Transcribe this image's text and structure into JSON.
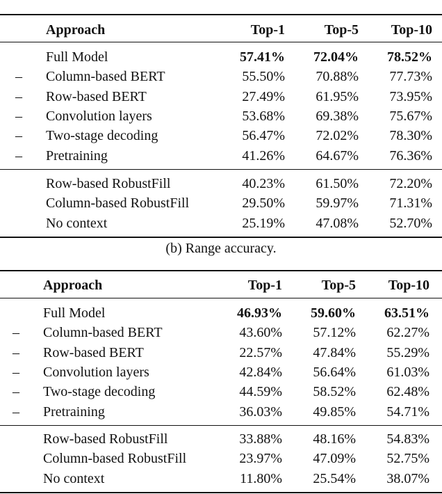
{
  "tables": [
    {
      "caption": "",
      "header": {
        "approach": "Approach",
        "cols": [
          "Top-1",
          "Top-5",
          "Top-10"
        ]
      },
      "groups": [
        [
          {
            "prefix": "",
            "approach": "Full Model",
            "values": [
              "57.41%",
              "72.04%",
              "78.52%"
            ],
            "bold": true
          },
          {
            "prefix": "–",
            "approach": "Column-based BERT",
            "values": [
              "55.50%",
              "70.88%",
              "77.73%"
            ]
          },
          {
            "prefix": "–",
            "approach": "Row-based BERT",
            "values": [
              "27.49%",
              "61.95%",
              "73.95%"
            ]
          },
          {
            "prefix": "–",
            "approach": "Convolution layers",
            "values": [
              "53.68%",
              "69.38%",
              "75.67%"
            ]
          },
          {
            "prefix": "–",
            "approach": "Two-stage decoding",
            "values": [
              "56.47%",
              "72.02%",
              "78.30%"
            ]
          },
          {
            "prefix": "–",
            "approach": "Pretraining",
            "values": [
              "41.26%",
              "64.67%",
              "76.36%"
            ]
          }
        ],
        [
          {
            "prefix": "",
            "approach": "Row-based RobustFill",
            "values": [
              "40.23%",
              "61.50%",
              "72.20%"
            ]
          },
          {
            "prefix": "",
            "approach": "Column-based RobustFill",
            "values": [
              "29.50%",
              "59.97%",
              "71.31%"
            ]
          },
          {
            "prefix": "",
            "approach": "No context",
            "values": [
              "25.19%",
              "47.08%",
              "52.70%"
            ]
          }
        ]
      ]
    },
    {
      "caption": "(b) Range accuracy.",
      "header": {
        "approach": "Approach",
        "cols": [
          "Top-1",
          "Top-5",
          "Top-10"
        ]
      },
      "groups": [
        [
          {
            "prefix": "",
            "approach": "Full Model",
            "values": [
              "46.93%",
              "59.60%",
              "63.51%"
            ],
            "bold": true
          },
          {
            "prefix": "–",
            "approach": "Column-based BERT",
            "values": [
              "43.60%",
              "57.12%",
              "62.27%"
            ]
          },
          {
            "prefix": "–",
            "approach": "Row-based BERT",
            "values": [
              "22.57%",
              "47.84%",
              "55.29%"
            ]
          },
          {
            "prefix": "–",
            "approach": "Convolution layers",
            "values": [
              "42.84%",
              "56.64%",
              "61.03%"
            ]
          },
          {
            "prefix": "–",
            "approach": "Two-stage decoding",
            "values": [
              "44.59%",
              "58.52%",
              "62.48%"
            ]
          },
          {
            "prefix": "–",
            "approach": "Pretraining",
            "values": [
              "36.03%",
              "49.85%",
              "54.71%"
            ]
          }
        ],
        [
          {
            "prefix": "",
            "approach": "Row-based RobustFill",
            "values": [
              "33.88%",
              "48.16%",
              "54.83%"
            ]
          },
          {
            "prefix": "",
            "approach": "Column-based RobustFill",
            "values": [
              "23.97%",
              "47.09%",
              "52.75%"
            ]
          },
          {
            "prefix": "",
            "approach": "No context",
            "values": [
              "11.80%",
              "25.54%",
              "38.07%"
            ]
          }
        ]
      ]
    }
  ]
}
